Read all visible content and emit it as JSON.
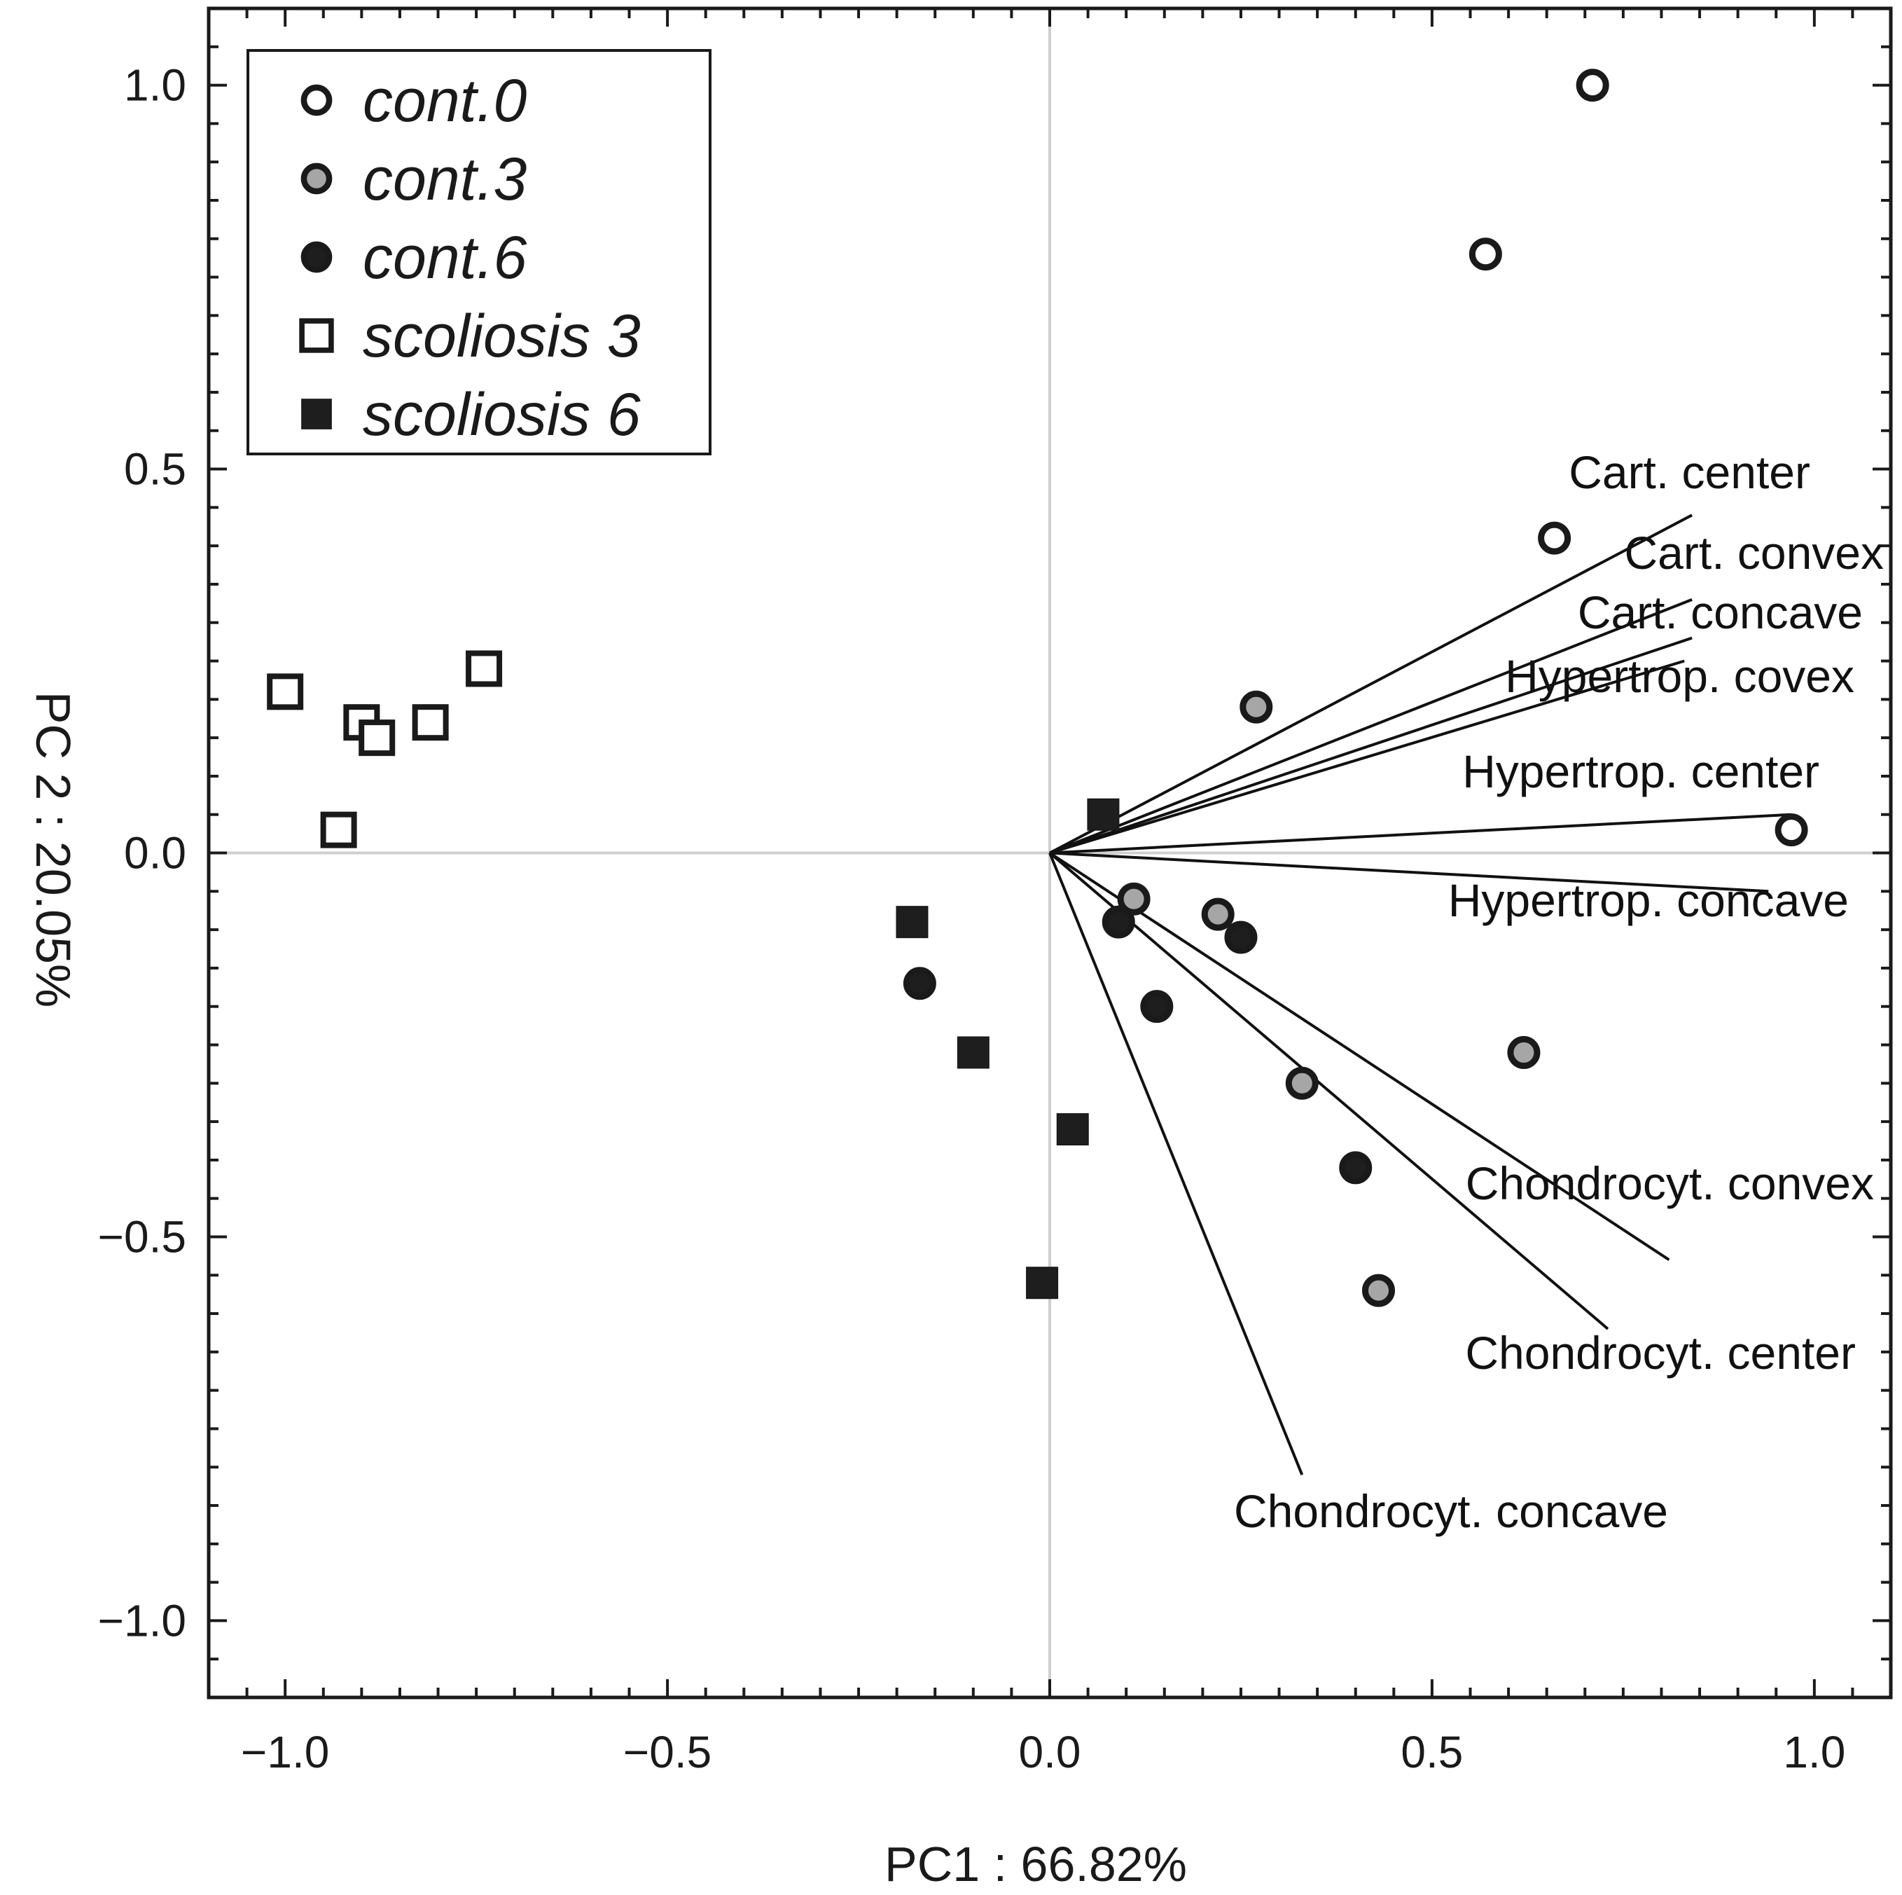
{
  "chart_data": {
    "type": "scatter",
    "xlabel": "PC1 : 66.82%",
    "ylabel": "PC 2 : 20.05%",
    "xlim": [
      -1.1,
      1.1
    ],
    "ylim": [
      -1.1,
      1.1
    ],
    "x_ticks": [
      -1.0,
      -0.5,
      0.0,
      0.5,
      1.0
    ],
    "y_ticks": [
      1.0,
      0.5,
      0.0,
      -0.5,
      -1.0
    ],
    "x_tick_labels": [
      "−1.0",
      "−0.5",
      "0.0",
      "0.5",
      "1.0"
    ],
    "y_tick_labels": [
      "1.0",
      "0.5",
      "0.0",
      "−0.5",
      "−1.0"
    ],
    "grid": false,
    "zero_lines": true,
    "legend_position": "top-left",
    "series": [
      {
        "name": "cont.0",
        "marker": "circle",
        "fill": "#ffffff",
        "points": [
          [
            0.71,
            1.0
          ],
          [
            0.57,
            0.78
          ],
          [
            0.66,
            0.41
          ],
          [
            0.97,
            0.03
          ]
        ]
      },
      {
        "name": "cont.3",
        "marker": "circle",
        "fill": "#a6a6a6",
        "points": [
          [
            0.27,
            0.19
          ],
          [
            0.11,
            -0.06
          ],
          [
            0.22,
            -0.08
          ],
          [
            0.33,
            -0.3
          ],
          [
            0.62,
            -0.26
          ],
          [
            0.43,
            -0.57
          ]
        ]
      },
      {
        "name": "cont.6",
        "marker": "circle",
        "fill": "#1e1e1e",
        "points": [
          [
            0.09,
            -0.09
          ],
          [
            0.25,
            -0.11
          ],
          [
            0.14,
            -0.2
          ],
          [
            -0.17,
            -0.17
          ],
          [
            0.4,
            -0.41
          ]
        ]
      },
      {
        "name": "scoliosis 3",
        "marker": "square",
        "fill": "#ffffff",
        "points": [
          [
            -1.0,
            0.21
          ],
          [
            -0.9,
            0.17
          ],
          [
            -0.88,
            0.15
          ],
          [
            -0.81,
            0.17
          ],
          [
            -0.74,
            0.24
          ],
          [
            -0.93,
            0.03
          ]
        ]
      },
      {
        "name": "scoliosis 6",
        "marker": "square",
        "fill": "#1e1e1e",
        "points": [
          [
            0.07,
            0.05
          ],
          [
            -0.18,
            -0.09
          ],
          [
            -0.1,
            -0.26
          ],
          [
            0.03,
            -0.36
          ],
          [
            -0.01,
            -0.56
          ]
        ]
      }
    ],
    "loadings": [
      {
        "label": "Cart. center",
        "x": 0.84,
        "y": 0.44
      },
      {
        "label": "Cart. convex",
        "x": 0.84,
        "y": 0.33
      },
      {
        "label": "Cart. concave",
        "x": 0.84,
        "y": 0.28
      },
      {
        "label": "Hypertrop. covex",
        "x": 0.83,
        "y": 0.25
      },
      {
        "label": "Hypertrop. center",
        "x": 0.97,
        "y": 0.05
      },
      {
        "label": "Hypertrop. concave",
        "x": 0.94,
        "y": -0.05
      },
      {
        "label": "Chondrocyt. convex",
        "x": 0.81,
        "y": -0.53
      },
      {
        "label": "Chondrocyt. center",
        "x": 0.73,
        "y": -0.62
      },
      {
        "label": "Chondrocyt. concave",
        "x": 0.33,
        "y": -0.81
      }
    ]
  }
}
